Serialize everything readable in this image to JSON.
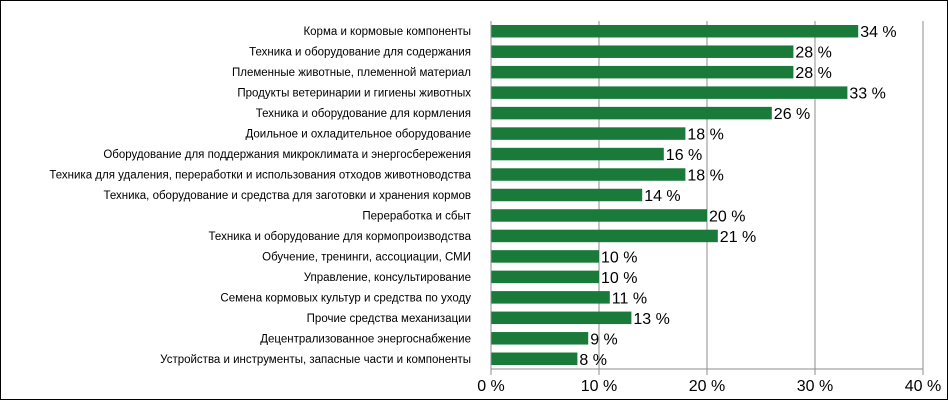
{
  "chart_data": {
    "type": "bar",
    "orientation": "horizontal",
    "categories": [
      "Корма и кормовые компоненты",
      "Техника и оборудование для содержания",
      "Племенные животные, племенной материал",
      "Продукты ветеринарии и гигиены животных",
      "Техника и оборудование для кормления",
      "Доильное и охладительное оборудование",
      "Оборудование для поддержания микроклимата и энергосбережения",
      "Техника для удаления, переработки и использования отходов животноводства",
      "Техника, оборудование и средства для заготовки и хранения кормов",
      "Переработка и сбыт",
      "Техника и оборудование для кормопроизводства",
      "Обучение, тренинги, ассоциации, СМИ",
      "Управление, консультирование",
      "Семена кормовых культур и средства по уходу",
      "Прочие средства механизации",
      "Децентрализованное энергоснабжение",
      "Устройства и инструменты, запасные части и компоненты"
    ],
    "values": [
      34,
      28,
      28,
      33,
      26,
      18,
      16,
      18,
      14,
      20,
      21,
      10,
      10,
      11,
      13,
      9,
      8
    ],
    "value_labels": [
      "34 %",
      "28 %",
      "28 %",
      "33 %",
      "26 %",
      "18 %",
      "16 %",
      "18 %",
      "14 %",
      "20 %",
      "21 %",
      "10 %",
      "10 %",
      "11 %",
      "13 %",
      "9 %",
      "8 %"
    ],
    "xlim": [
      0,
      40
    ],
    "xticks": [
      0,
      10,
      20,
      30,
      40
    ],
    "xtick_labels": [
      "0 %",
      "10 %",
      "20 %",
      "30 %",
      "40 %"
    ],
    "grid": "vertical",
    "bar_color": "#1a7a3a",
    "grid_color": "#8c8c8c"
  }
}
